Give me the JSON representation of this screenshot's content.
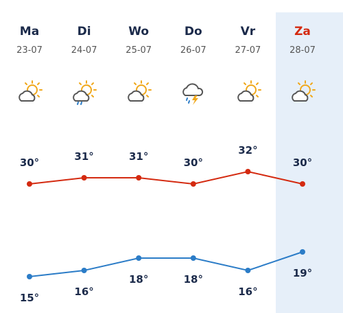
{
  "forecast": {
    "days": [
      "Ma",
      "Di",
      "Wo",
      "Do",
      "Vr",
      "Za"
    ],
    "dates": [
      "23-07",
      "24-07",
      "25-07",
      "26-07",
      "27-07",
      "28-07"
    ],
    "highs": [
      30,
      31,
      31,
      30,
      32,
      30
    ],
    "high_labels": [
      "30°",
      "31°",
      "31°",
      "30°",
      "32°",
      "30°"
    ],
    "lows": [
      15,
      16,
      18,
      18,
      16,
      19
    ],
    "low_labels": [
      "15°",
      "16°",
      "18°",
      "18°",
      "16°",
      "19°"
    ],
    "high_color": "#d42a10",
    "low_color": "#2b7cc7",
    "highlighted": 5
  }
}
